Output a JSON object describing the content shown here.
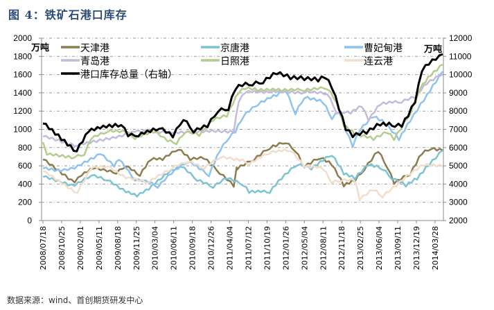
{
  "title": "图 4：铁矿石港口库存",
  "source": "数据来源：wind、首创期货研发中心",
  "chart_data": {
    "type": "line",
    "title": "铁矿石港口库存",
    "left_unit": "万吨",
    "right_unit": "万吨",
    "ylim_left": [
      0,
      2000
    ],
    "yticks_left": [
      0,
      200,
      400,
      600,
      800,
      1000,
      1200,
      1400,
      1600,
      1800,
      2000
    ],
    "ylim_right": [
      2000,
      12000
    ],
    "yticks_right": [
      2000,
      3000,
      4000,
      5000,
      6000,
      7000,
      8000,
      9000,
      10000,
      11000,
      12000
    ],
    "grid": true,
    "legend_position": "top",
    "x_note": "x values are positions in units of the category tick index",
    "categories": [
      "2008/07/18",
      "2008/10/25",
      "2009/02/01",
      "2009/05/11",
      "2009/08/18",
      "2009/11/25",
      "2010/03/04",
      "2010/06/11",
      "2010/09/18",
      "2010/12/26",
      "2011/04/04",
      "2011/07/12",
      "2011/10/19",
      "2012/01/26",
      "2012/05/04",
      "2012/08/11",
      "2012/11/18",
      "2013/02/25",
      "2013/06/04",
      "2013/09/11",
      "2013/12/19",
      "2014/03/28"
    ],
    "series": [
      {
        "name": "天津港",
        "axis": "left",
        "color": "#8b7d4e",
        "points": [
          [
            0,
            669
          ],
          [
            1.7,
            418
          ],
          [
            2.07,
            494
          ],
          [
            2.7,
            570
          ],
          [
            3.44,
            540
          ],
          [
            3.93,
            517
          ],
          [
            4.44,
            593
          ],
          [
            5.19,
            494
          ],
          [
            5.78,
            669
          ],
          [
            6.41,
            669
          ],
          [
            7.26,
            783
          ],
          [
            7.89,
            669
          ],
          [
            8.63,
            684
          ],
          [
            9.48,
            517
          ],
          [
            10.22,
            380
          ],
          [
            10.37,
            593
          ],
          [
            10.41,
            570
          ],
          [
            11.3,
            669
          ],
          [
            12.15,
            798
          ],
          [
            13,
            859
          ],
          [
            13.52,
            768
          ],
          [
            14,
            593
          ],
          [
            14.85,
            692
          ],
          [
            15.48,
            616
          ],
          [
            16.11,
            388
          ],
          [
            16.7,
            441
          ],
          [
            17.22,
            570
          ],
          [
            17.96,
            768
          ],
          [
            18.44,
            593
          ],
          [
            18.81,
            418
          ],
          [
            19.67,
            517
          ],
          [
            20.3,
            745
          ],
          [
            20.78,
            798
          ],
          [
            21.41,
            768
          ]
        ]
      },
      {
        "name": "京唐港",
        "axis": "left",
        "color": "#7cc3d3",
        "points": [
          [
            0,
            479
          ],
          [
            1.7,
            380
          ],
          [
            2.59,
            494
          ],
          [
            3.44,
            441
          ],
          [
            4.44,
            312
          ],
          [
            5.04,
            266
          ],
          [
            5.67,
            342
          ],
          [
            6.67,
            517
          ],
          [
            7.41,
            593
          ],
          [
            8.26,
            441
          ],
          [
            9.11,
            365
          ],
          [
            9.85,
            464
          ],
          [
            10.74,
            388
          ],
          [
            11.04,
            312
          ],
          [
            12.15,
            312
          ],
          [
            12.78,
            464
          ],
          [
            13.63,
            616
          ],
          [
            14.37,
            570
          ],
          [
            15.48,
            722
          ],
          [
            16.11,
            517
          ],
          [
            16.7,
            464
          ],
          [
            17.44,
            616
          ],
          [
            18.19,
            570
          ],
          [
            18.7,
            464
          ],
          [
            19.44,
            388
          ],
          [
            20.04,
            464
          ],
          [
            20.67,
            616
          ],
          [
            21.41,
            768
          ]
        ]
      },
      {
        "name": "曹妃甸港",
        "axis": "left",
        "color": "#8dc3ee",
        "points": [
          [
            0,
            570
          ],
          [
            0.96,
            540
          ],
          [
            1.7,
            570
          ],
          [
            3.07,
            730
          ],
          [
            3.81,
            593
          ],
          [
            4.07,
            669
          ],
          [
            4.93,
            441
          ],
          [
            5.67,
            418
          ],
          [
            6.15,
            365
          ],
          [
            6.89,
            517
          ],
          [
            7.78,
            646
          ],
          [
            8.37,
            570
          ],
          [
            8.89,
            494
          ],
          [
            9.48,
            768
          ],
          [
            10,
            920
          ],
          [
            10.3,
            973
          ],
          [
            10.74,
            1148
          ],
          [
            11.52,
            1277
          ],
          [
            12.52,
            1376
          ],
          [
            13,
            1429
          ],
          [
            13.52,
            1178
          ],
          [
            14,
            1353
          ],
          [
            15,
            1300
          ],
          [
            15.48,
            1125
          ],
          [
            15.85,
            1201
          ],
          [
            16.22,
            996
          ],
          [
            16.59,
            821
          ],
          [
            16.96,
            996
          ],
          [
            17.7,
            1148
          ],
          [
            18.33,
            1072
          ],
          [
            19.07,
            897
          ],
          [
            19.67,
            1102
          ],
          [
            20.41,
            1330
          ],
          [
            21.04,
            1528
          ],
          [
            21.41,
            1634
          ]
        ]
      },
      {
        "name": "青岛港",
        "axis": "left",
        "color": "#c4badb",
        "points": [
          [
            0,
            920
          ],
          [
            1.85,
            821
          ],
          [
            4.93,
            973
          ],
          [
            10.22,
            973
          ],
          [
            10.48,
            1300
          ],
          [
            10.85,
            1406
          ],
          [
            12.15,
            1406
          ],
          [
            14,
            1406
          ],
          [
            15.22,
            1391
          ],
          [
            15.74,
            1178
          ],
          [
            16.48,
            1178
          ],
          [
            17.07,
            1254
          ],
          [
            17.44,
            1102
          ],
          [
            18.07,
            1277
          ],
          [
            19.19,
            1300
          ],
          [
            19.93,
            1353
          ],
          [
            20.56,
            1505
          ],
          [
            21.41,
            1604
          ]
        ]
      },
      {
        "name": "日照港",
        "axis": "left",
        "color": "#b4cc8c",
        "points": [
          [
            0,
            859
          ],
          [
            0.22,
            722
          ],
          [
            1.7,
            692
          ],
          [
            2.22,
            722
          ],
          [
            2.59,
            897
          ],
          [
            3.44,
            973
          ],
          [
            4.44,
            973
          ],
          [
            4.93,
            897
          ],
          [
            5.93,
            973
          ],
          [
            6.67,
            874
          ],
          [
            7.15,
            844
          ],
          [
            7.63,
            973
          ],
          [
            8.37,
            935
          ],
          [
            9.11,
            1102
          ],
          [
            9.85,
            1148
          ],
          [
            10.48,
            1406
          ],
          [
            10.85,
            1452
          ],
          [
            11.52,
            1429
          ],
          [
            12.78,
            1429
          ],
          [
            14,
            1429
          ],
          [
            15.22,
            1452
          ],
          [
            15.74,
            1300
          ],
          [
            16.11,
            1049
          ],
          [
            16.7,
            950
          ],
          [
            17.7,
            897
          ],
          [
            18.44,
            973
          ],
          [
            18.81,
            897
          ],
          [
            19.67,
            1178
          ],
          [
            20.19,
            1452
          ],
          [
            20.78,
            1604
          ],
          [
            21.41,
            1710
          ]
        ]
      },
      {
        "name": "连云港",
        "axis": "left",
        "color": "#f2ddca",
        "points": [
          [
            0,
            540
          ],
          [
            1.85,
            304
          ],
          [
            2.59,
            570
          ],
          [
            3.44,
            593
          ],
          [
            4.44,
            464
          ],
          [
            5.67,
            418
          ],
          [
            6.89,
            570
          ],
          [
            7.78,
            646
          ],
          [
            8.63,
            570
          ],
          [
            9.48,
            692
          ],
          [
            10.22,
            669
          ],
          [
            10.85,
            646
          ],
          [
            11.04,
            616
          ],
          [
            12.15,
            745
          ],
          [
            13.26,
            768
          ],
          [
            14,
            593
          ],
          [
            15,
            570
          ],
          [
            15.48,
            418
          ],
          [
            15.96,
            441
          ],
          [
            16.7,
            441
          ],
          [
            16.96,
            236
          ],
          [
            17.7,
            342
          ],
          [
            18.19,
            266
          ],
          [
            18.93,
            388
          ],
          [
            19.67,
            517
          ],
          [
            20.41,
            616
          ],
          [
            21.41,
            593
          ]
        ]
      },
      {
        "name": "港口库存总量（右轴）",
        "axis": "right",
        "color": "#000000",
        "points": [
          [
            0,
            7320
          ],
          [
            1.81,
            5800
          ],
          [
            2.44,
            6870
          ],
          [
            3.07,
            7060
          ],
          [
            4.19,
            7250
          ],
          [
            4.56,
            6640
          ],
          [
            5.11,
            6640
          ],
          [
            6.22,
            7060
          ],
          [
            6.96,
            6600
          ],
          [
            7.52,
            7550
          ],
          [
            8.07,
            6870
          ],
          [
            8.81,
            7170
          ],
          [
            9.37,
            8000
          ],
          [
            9.93,
            8120
          ],
          [
            10.3,
            9220
          ],
          [
            10.67,
            9440
          ],
          [
            11.22,
            9480
          ],
          [
            11.78,
            9600
          ],
          [
            12.52,
            10100
          ],
          [
            13.26,
            9830
          ],
          [
            14,
            9790
          ],
          [
            14.74,
            9720
          ],
          [
            15.11,
            9900
          ],
          [
            15.48,
            9330
          ],
          [
            15.85,
            8190
          ],
          [
            16.22,
            7060
          ],
          [
            16.59,
            6680
          ],
          [
            17.33,
            6870
          ],
          [
            18.07,
            7320
          ],
          [
            18.85,
            7250
          ],
          [
            19.22,
            7250
          ],
          [
            19.56,
            7820
          ],
          [
            19.93,
            8570
          ],
          [
            20.3,
            10300
          ],
          [
            20.67,
            10670
          ],
          [
            21.04,
            10930
          ],
          [
            21.41,
            11120
          ]
        ]
      }
    ]
  }
}
